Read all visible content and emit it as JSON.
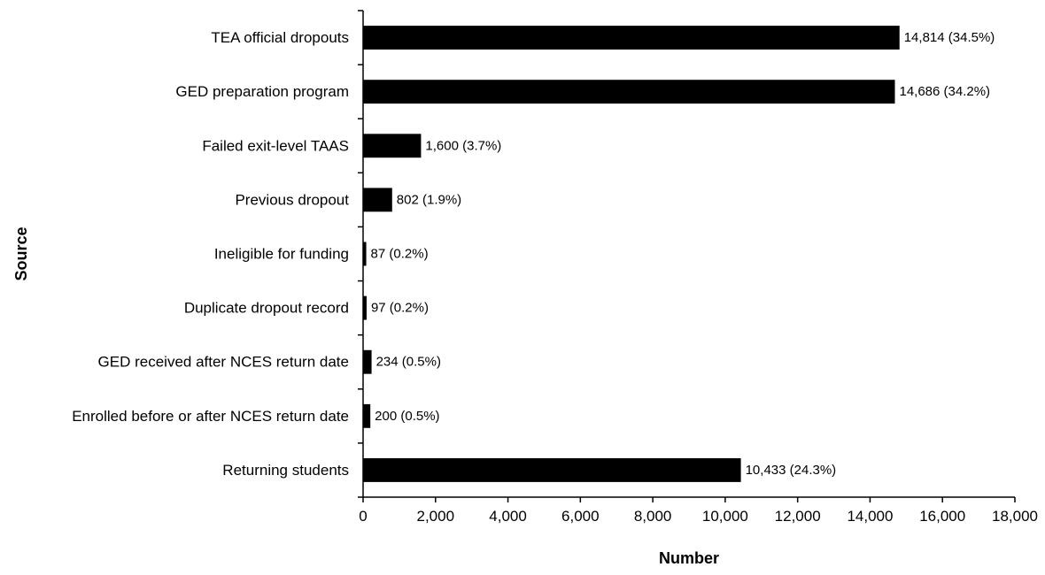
{
  "chart_data": {
    "type": "bar",
    "orientation": "horizontal",
    "title": "",
    "xlabel": "Number",
    "ylabel": "Source",
    "xlim": [
      0,
      18000
    ],
    "x_ticks": [
      0,
      2000,
      4000,
      6000,
      8000,
      10000,
      12000,
      14000,
      16000,
      18000
    ],
    "x_tick_labels": [
      "0",
      "2,000",
      "4,000",
      "6,000",
      "8,000",
      "10,000",
      "12,000",
      "14,000",
      "16,000",
      "18,000"
    ],
    "grid": false,
    "legend": "none",
    "bar_color": "#000000",
    "categories": [
      "TEA official dropouts",
      "GED preparation program",
      "Failed exit-level TAAS",
      "Previous dropout",
      "Ineligible for funding",
      "Duplicate dropout record",
      "GED received after NCES return date",
      "Enrolled before or after NCES return date",
      "Returning students"
    ],
    "values": [
      14814,
      14686,
      1600,
      802,
      87,
      97,
      234,
      200,
      10433
    ],
    "data_labels": [
      "14,814 (34.5%)",
      "14,686 (34.2%)",
      "1,600 (3.7%)",
      "802 (1.9%)",
      "87 (0.2%)",
      "97 (0.2%)",
      "234 (0.5%)",
      "200 (0.5%)",
      "10,433 (24.3%)"
    ]
  }
}
